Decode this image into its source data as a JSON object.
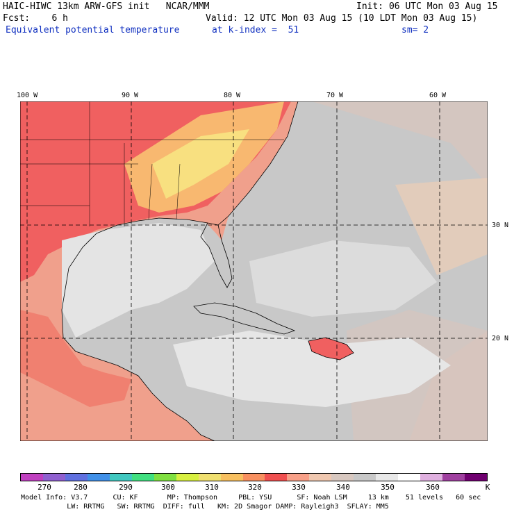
{
  "header": {
    "left_line1": "HAIC-HIWC 13km ARW-GFS init   NCAR/MMM",
    "left_line2": "Fcst:    6 h",
    "left_line3": "Equivalent potential temperature",
    "init": "Init: 06 UTC Mon 03 Aug 15",
    "valid": "Valid: 12 UTC Mon 03 Aug 15 (10 LDT Mon 03 Aug 15)",
    "k_index": "at k-index =  51",
    "sm": "sm= 2"
  },
  "axes": {
    "lon_labels": [
      "100 W",
      "90 W",
      "80 W",
      "70 W",
      "60 W"
    ],
    "lat_labels": [
      "30 N",
      "20 N"
    ]
  },
  "colorbar": {
    "labels": [
      "270",
      "280",
      "290",
      "300",
      "310",
      "320",
      "330",
      "340",
      "350",
      "360"
    ],
    "unit": "K",
    "colors": [
      "#c040c0",
      "#9060d0",
      "#6070e0",
      "#4090e8",
      "#40c8c0",
      "#40e080",
      "#80e040",
      "#d8f040",
      "#f0e070",
      "#f8c060",
      "#f89060",
      "#f05050",
      "#f8a088",
      "#f0c8b0",
      "#d8c8c0",
      "#c8c8c8",
      "#e8e8e8",
      "#ffffff",
      "#e0b0e0",
      "#a040a0",
      "#700070"
    ]
  },
  "footer": {
    "line1": "Model Info: V3.7      CU: KF       MP: Thompson     PBL: YSU      SF: Noah LSM     13 km    51 levels   60 sec",
    "line2": "           LW: RRTMG   SW: RRTMG  DIFF: full   KM: 2D Smagor DAMP: Rayleigh3  SFLAY: MM5"
  }
}
